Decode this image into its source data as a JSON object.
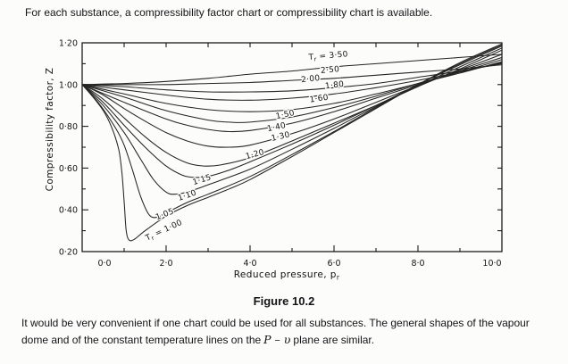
{
  "page": {
    "intro_text": "For each substance, a compressibility factor chart or compressibility chart is available.",
    "figure_caption": "Figure 10.2",
    "body": {
      "part1": "It would be very convenient if one chart could be used for all substances. The general shapes of the vapour dome and of the constant temperature lines on the",
      "math": "P – υ",
      "part2": "plane are similar."
    }
  },
  "chart_data": {
    "type": "line",
    "xlabel": {
      "main": "Reduced pressure, p",
      "sub": "r"
    },
    "ylabel": "Compressibility factor, Z",
    "xlim": [
      0,
      10
    ],
    "ylim": [
      0.2,
      1.2
    ],
    "grid": false,
    "legend": "labels-on-curves",
    "x_ticks": {
      "values": [
        0,
        2,
        4,
        6,
        8,
        10
      ],
      "labels": [
        "0·0",
        "2·0",
        "4·0",
        "6·0",
        "8·0",
        "10·0"
      ],
      "label_dx": [
        25,
        0,
        0,
        0,
        0,
        -11
      ],
      "minor": [
        1,
        3,
        5,
        7,
        9
      ]
    },
    "y_ticks": {
      "values": [
        0.2,
        0.4,
        0.6,
        0.8,
        1.0,
        1.2
      ],
      "labels": [
        "0·20",
        "0·40",
        "0·60",
        "0·80",
        "1·00",
        "1·20"
      ],
      "minor": [
        0.3,
        0.5,
        0.7,
        0.9,
        1.1
      ]
    },
    "series": [
      {
        "tr": "3.50",
        "label": "Tr = 3·50",
        "label_at": {
          "x": 5.87,
          "y": 1.127,
          "rot": -5
        },
        "points": [
          [
            0,
            1
          ],
          [
            1,
            1.005
          ],
          [
            2,
            1.015
          ],
          [
            3,
            1.03
          ],
          [
            4,
            1.05
          ],
          [
            5,
            1.065
          ],
          [
            6,
            1.085
          ],
          [
            7,
            1.1
          ],
          [
            8,
            1.115
          ],
          [
            9,
            1.13
          ],
          [
            10,
            1.145
          ]
        ]
      },
      {
        "tr": "2.50",
        "label": "2·50",
        "label_at": {
          "x": 5.91,
          "y": 1.059,
          "rot": -5
        },
        "points": [
          [
            0,
            1
          ],
          [
            1,
            1
          ],
          [
            2,
            1
          ],
          [
            3,
            1.005
          ],
          [
            4,
            1.01
          ],
          [
            5,
            1.02
          ],
          [
            6,
            1.03
          ],
          [
            7,
            1.045
          ],
          [
            8,
            1.06
          ],
          [
            9,
            1.075
          ],
          [
            10,
            1.095
          ]
        ]
      },
      {
        "tr": "2.00",
        "label": "2·00",
        "label_at": {
          "x": 5.45,
          "y": 1.016,
          "rot": -6
        },
        "points": [
          [
            0,
            1
          ],
          [
            1,
            0.99
          ],
          [
            2,
            0.975
          ],
          [
            3,
            0.965
          ],
          [
            4,
            0.965
          ],
          [
            5,
            0.97
          ],
          [
            6,
            0.985
          ],
          [
            7,
            1.005
          ],
          [
            8,
            1.035
          ],
          [
            9,
            1.065
          ],
          [
            10,
            1.1
          ]
        ]
      },
      {
        "tr": "1.80",
        "label": "1·80",
        "label_at": {
          "x": 6.02,
          "y": 0.986,
          "rot": -7
        },
        "points": [
          [
            0,
            1
          ],
          [
            1,
            0.975
          ],
          [
            2,
            0.95
          ],
          [
            3,
            0.93
          ],
          [
            4,
            0.925
          ],
          [
            5,
            0.935
          ],
          [
            6,
            0.955
          ],
          [
            7,
            0.985
          ],
          [
            8,
            1.02
          ],
          [
            9,
            1.06
          ],
          [
            10,
            1.105
          ]
        ]
      },
      {
        "tr": "1.60",
        "label": "1·60",
        "label_at": {
          "x": 5.65,
          "y": 0.922,
          "rot": -8
        },
        "points": [
          [
            0,
            1
          ],
          [
            1,
            0.955
          ],
          [
            2,
            0.91
          ],
          [
            3,
            0.88
          ],
          [
            4,
            0.87
          ],
          [
            5,
            0.88
          ],
          [
            6,
            0.91
          ],
          [
            7,
            0.955
          ],
          [
            8,
            1.005
          ],
          [
            9,
            1.055
          ],
          [
            10,
            1.11
          ]
        ]
      },
      {
        "tr": "1.50",
        "label": "1·50",
        "label_at": {
          "x": 4.85,
          "y": 0.845,
          "rot": -12
        },
        "points": [
          [
            0,
            1
          ],
          [
            1,
            0.94
          ],
          [
            2,
            0.875
          ],
          [
            3,
            0.83
          ],
          [
            3.5,
            0.82
          ],
          [
            4,
            0.82
          ],
          [
            5,
            0.845
          ],
          [
            6,
            0.89
          ],
          [
            7,
            0.945
          ],
          [
            8,
            1.005
          ],
          [
            9,
            1.06
          ],
          [
            10,
            1.12
          ]
        ]
      },
      {
        "tr": "1.40",
        "label": "1·40",
        "label_at": {
          "x": 4.64,
          "y": 0.785,
          "rot": -12
        },
        "points": [
          [
            0,
            1
          ],
          [
            1,
            0.915
          ],
          [
            2,
            0.835
          ],
          [
            2.5,
            0.805
          ],
          [
            3,
            0.785
          ],
          [
            3.5,
            0.775
          ],
          [
            4,
            0.78
          ],
          [
            5,
            0.815
          ],
          [
            6,
            0.87
          ],
          [
            7,
            0.935
          ],
          [
            8,
            1.0
          ],
          [
            9,
            1.065
          ],
          [
            10,
            1.13
          ]
        ]
      },
      {
        "tr": "1.30",
        "label": "1·30",
        "label_at": {
          "x": 4.74,
          "y": 0.74,
          "rot": -13
        },
        "points": [
          [
            0,
            1
          ],
          [
            0.5,
            0.95
          ],
          [
            1,
            0.885
          ],
          [
            1.5,
            0.825
          ],
          [
            2,
            0.77
          ],
          [
            2.5,
            0.73
          ],
          [
            3,
            0.705
          ],
          [
            3.5,
            0.7
          ],
          [
            4,
            0.71
          ],
          [
            5,
            0.765
          ],
          [
            6,
            0.835
          ],
          [
            7,
            0.915
          ],
          [
            8,
            0.995
          ],
          [
            9,
            1.07
          ],
          [
            10,
            1.145
          ]
        ]
      },
      {
        "tr": "1.20",
        "label": "1·20",
        "label_at": {
          "x": 4.13,
          "y": 0.655,
          "rot": -15
        },
        "points": [
          [
            0,
            1
          ],
          [
            0.5,
            0.93
          ],
          [
            1,
            0.84
          ],
          [
            1.5,
            0.75
          ],
          [
            2,
            0.675
          ],
          [
            2.5,
            0.625
          ],
          [
            2.9,
            0.61
          ],
          [
            3.3,
            0.615
          ],
          [
            4,
            0.65
          ],
          [
            5,
            0.73
          ],
          [
            6,
            0.815
          ],
          [
            7,
            0.9
          ],
          [
            8,
            0.99
          ],
          [
            9,
            1.075
          ],
          [
            10,
            1.165
          ]
        ]
      },
      {
        "tr": "1.15",
        "label": "1·15",
        "label_at": {
          "x": 2.87,
          "y": 0.533,
          "rot": -17
        },
        "points": [
          [
            0,
            1
          ],
          [
            0.5,
            0.915
          ],
          [
            1,
            0.805
          ],
          [
            1.5,
            0.7
          ],
          [
            2,
            0.61
          ],
          [
            2.4,
            0.565
          ],
          [
            2.7,
            0.555
          ],
          [
            3,
            0.56
          ],
          [
            3.5,
            0.59
          ],
          [
            4,
            0.63
          ],
          [
            5,
            0.715
          ],
          [
            6,
            0.805
          ],
          [
            7,
            0.9
          ],
          [
            8,
            0.995
          ],
          [
            9,
            1.085
          ],
          [
            10,
            1.175
          ]
        ]
      },
      {
        "tr": "1.10",
        "label": "1·10",
        "label_at": {
          "x": 2.52,
          "y": 0.458,
          "rot": -19
        },
        "points": [
          [
            0,
            1
          ],
          [
            0.5,
            0.9
          ],
          [
            1,
            0.77
          ],
          [
            1.4,
            0.64
          ],
          [
            1.7,
            0.545
          ],
          [
            2,
            0.485
          ],
          [
            2.2,
            0.475
          ],
          [
            2.5,
            0.485
          ],
          [
            3,
            0.52
          ],
          [
            4,
            0.595
          ],
          [
            5,
            0.69
          ],
          [
            6,
            0.79
          ],
          [
            7,
            0.895
          ],
          [
            8,
            1.0
          ],
          [
            9,
            1.095
          ],
          [
            10,
            1.185
          ]
        ]
      },
      {
        "tr": "1.05",
        "label": "1·05",
        "label_at": {
          "x": 1.99,
          "y": 0.368,
          "rot": -21
        },
        "points": [
          [
            0,
            1
          ],
          [
            0.4,
            0.91
          ],
          [
            0.8,
            0.79
          ],
          [
            1,
            0.71
          ],
          [
            1.2,
            0.59
          ],
          [
            1.4,
            0.46
          ],
          [
            1.6,
            0.375
          ],
          [
            1.8,
            0.365
          ],
          [
            2,
            0.385
          ],
          [
            2.5,
            0.435
          ],
          [
            3,
            0.475
          ],
          [
            4,
            0.56
          ],
          [
            5,
            0.665
          ],
          [
            6,
            0.775
          ],
          [
            7,
            0.89
          ],
          [
            8,
            1.0
          ],
          [
            9,
            1.1
          ],
          [
            10,
            1.19
          ]
        ]
      },
      {
        "tr": "1.00",
        "label": "Tr = 1·00",
        "label_at": {
          "x": 1.97,
          "y": 0.292,
          "rot": -25
        },
        "points": [
          [
            0,
            1
          ],
          [
            0.3,
            0.93
          ],
          [
            0.55,
            0.86
          ],
          [
            0.75,
            0.77
          ],
          [
            0.88,
            0.68
          ],
          [
            0.95,
            0.57
          ],
          [
            1,
            0.44
          ],
          [
            1.05,
            0.3
          ],
          [
            1.12,
            0.255
          ],
          [
            1.25,
            0.26
          ],
          [
            1.5,
            0.3
          ],
          [
            2,
            0.37
          ],
          [
            2.5,
            0.42
          ],
          [
            3,
            0.46
          ],
          [
            3.5,
            0.5
          ],
          [
            4,
            0.545
          ],
          [
            5,
            0.655
          ],
          [
            6,
            0.77
          ],
          [
            7,
            0.885
          ],
          [
            8,
            1.0
          ],
          [
            9,
            1.105
          ],
          [
            10,
            1.195
          ]
        ]
      }
    ]
  }
}
